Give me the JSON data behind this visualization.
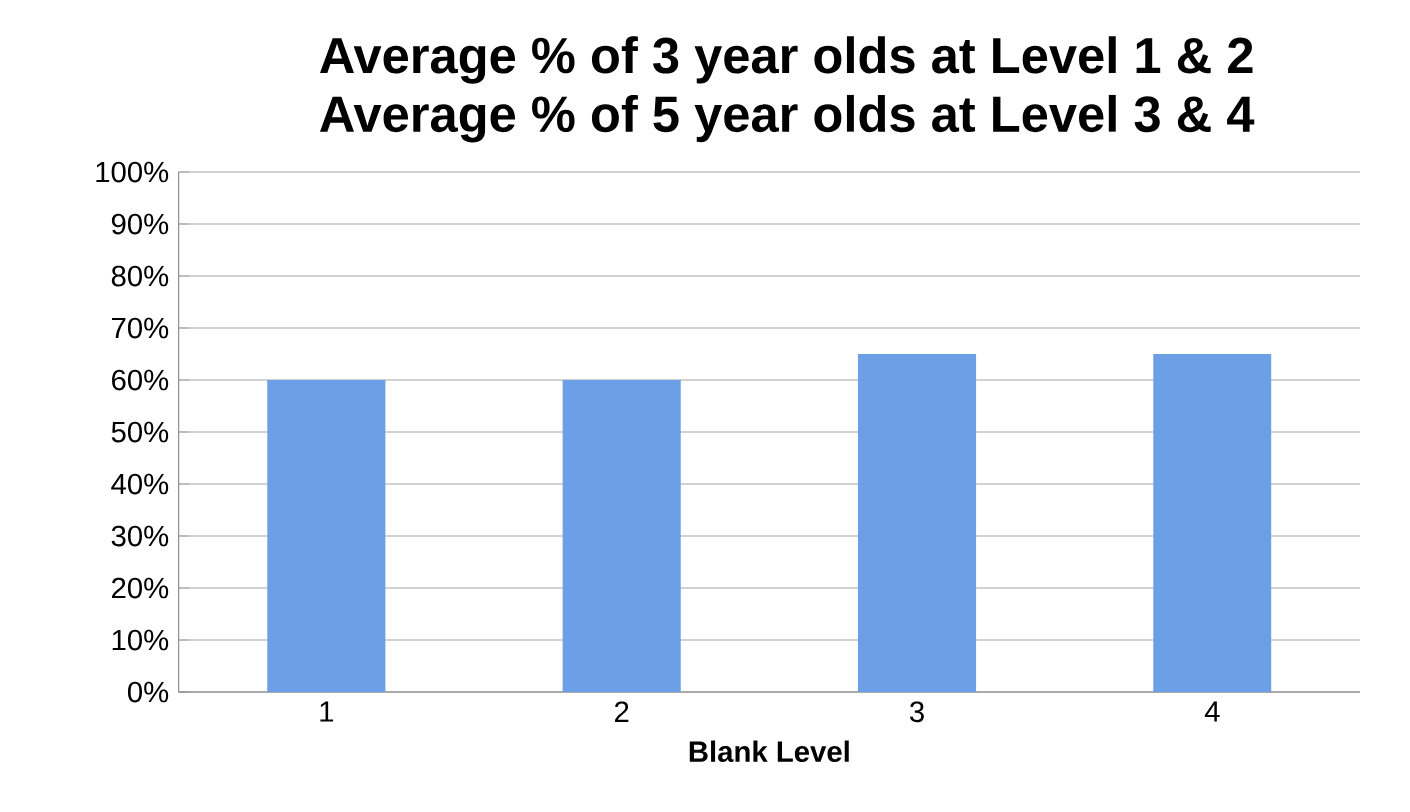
{
  "chart_data": {
    "type": "bar",
    "title": "Average % of 3 year olds at Level 1 & 2\nAverage % of 5 year olds at Level 3 & 4",
    "xlabel": "Blank Level",
    "categories": [
      "1",
      "2",
      "3",
      "4"
    ],
    "values": [
      60,
      60,
      65,
      65
    ],
    "color": "#6d9fe6",
    "ylim": [
      0,
      100
    ],
    "yticks": [
      {
        "value": 0,
        "label": "0%"
      },
      {
        "value": 10,
        "label": "10%"
      },
      {
        "value": 20,
        "label": "20%"
      },
      {
        "value": 30,
        "label": "30%"
      },
      {
        "value": 40,
        "label": "40%"
      },
      {
        "value": 50,
        "label": "50%"
      },
      {
        "value": 60,
        "label": "60%"
      },
      {
        "value": 70,
        "label": "70%"
      },
      {
        "value": 80,
        "label": "80%"
      },
      {
        "value": 90,
        "label": "90%"
      },
      {
        "value": 100,
        "label": "100%"
      }
    ],
    "grid": "y"
  }
}
